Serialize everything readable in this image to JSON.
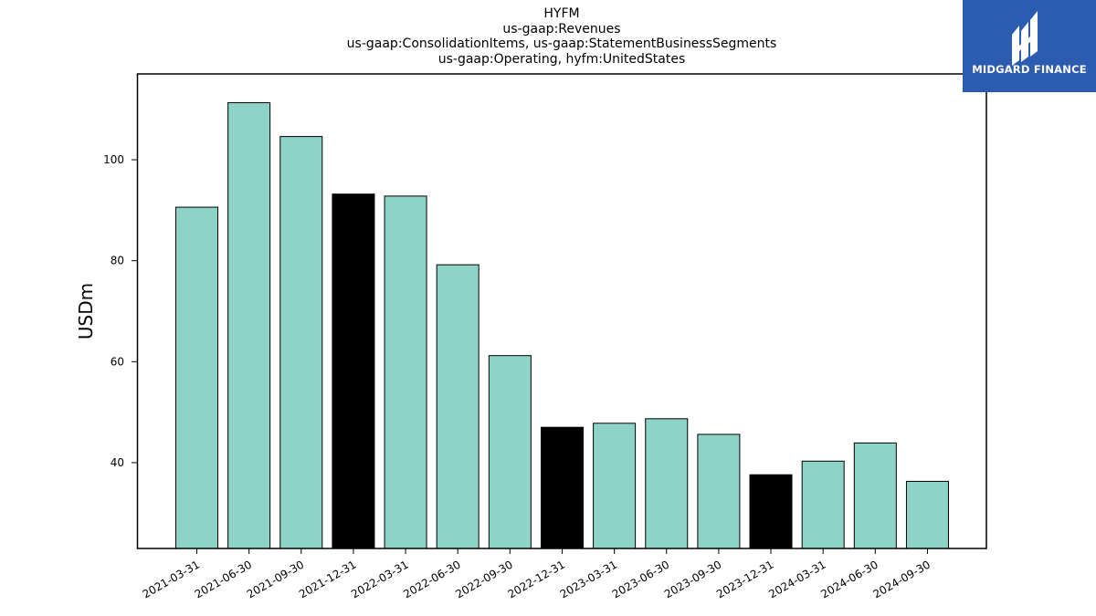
{
  "chart_data": {
    "type": "bar",
    "title_lines": [
      "HYFM",
      "us-gaap:Revenues",
      "us-gaap:ConsolidationItems, us-gaap:StatementBusinessSegments",
      "us-gaap:Operating, hyfm:UnitedStates"
    ],
    "ylabel": "USDm",
    "xlabel": "",
    "ylim": [
      23,
      117
    ],
    "yticks": [
      40,
      60,
      80,
      100
    ],
    "categories": [
      "2021-03-31",
      "2021-06-30",
      "2021-09-30",
      "2021-12-31",
      "2022-03-31",
      "2022-06-30",
      "2022-09-30",
      "2022-12-31",
      "2023-03-31",
      "2023-06-30",
      "2023-09-30",
      "2023-12-31",
      "2024-03-31",
      "2024-06-30",
      "2024-09-30"
    ],
    "values": [
      90.6,
      111.3,
      104.6,
      93.2,
      92.8,
      79.2,
      61.2,
      47.0,
      47.8,
      48.7,
      45.6,
      37.6,
      40.3,
      43.9,
      36.3
    ],
    "highlighted": [
      false,
      false,
      false,
      true,
      false,
      false,
      false,
      true,
      false,
      false,
      false,
      true,
      false,
      false,
      false
    ],
    "colors": {
      "normal": "#8dd3c7",
      "highlight": "#000000",
      "edge": "#000000"
    },
    "grid": false
  },
  "logo": {
    "name": "midgard-logo-icon",
    "text": "MIDGARD FINANCE",
    "background": "#2b5cb0"
  }
}
